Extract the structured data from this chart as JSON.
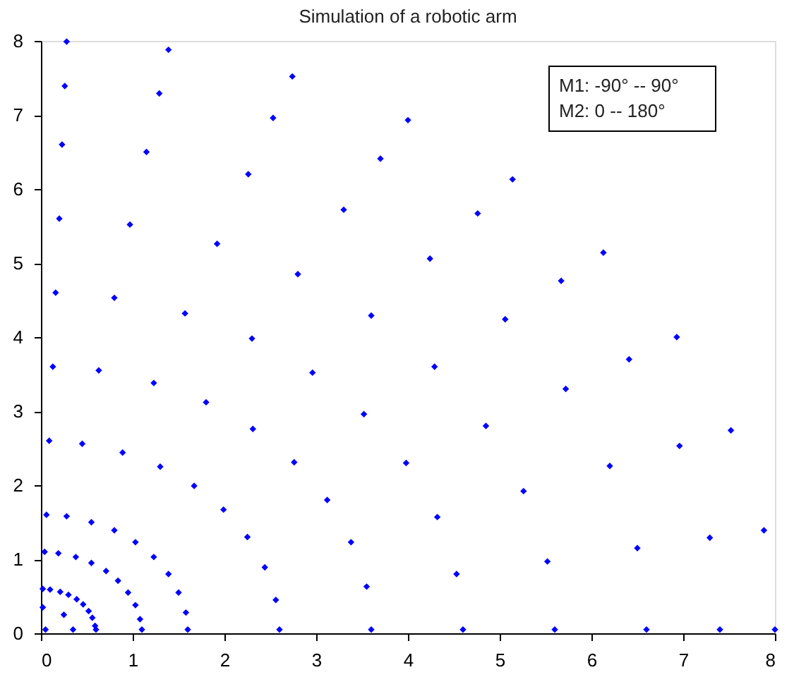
{
  "chart_data": {
    "type": "scatter",
    "title": "Simulation of a robotic arm",
    "annotations": [
      "M1: -90° -- 90°",
      "M2: 0 -- 180°"
    ],
    "xlim": [
      0,
      8
    ],
    "ylim": [
      0,
      8
    ],
    "xticks": [
      0,
      1,
      2,
      3,
      4,
      5,
      6,
      7,
      8
    ],
    "yticks": [
      0,
      1,
      2,
      3,
      4,
      5,
      6,
      7,
      8
    ],
    "grid": false,
    "marker": "diamond",
    "series": [
      {
        "color": "#0000ff",
        "x": [
          8,
          7.88,
          7.52,
          6.93,
          6.13,
          5.14,
          4,
          2.74,
          1.39,
          0.28,
          7.4,
          7.29,
          6.96,
          6.41,
          5.67,
          4.76,
          3.7,
          2.53,
          1.29,
          0.26,
          6.6,
          6.5,
          6.2,
          5.72,
          5.06,
          4.24,
          3.3,
          2.26,
          1.15,
          0.23,
          5.6,
          5.52,
          5.26,
          4.85,
          4.29,
          3.6,
          2.8,
          1.92,
          0.97,
          0.2,
          4.6,
          4.53,
          4.32,
          3.98,
          3.52,
          2.96,
          2.3,
          1.57,
          0.8,
          0.16,
          3.6,
          3.55,
          3.38,
          3.12,
          2.76,
          2.31,
          1.8,
          1.23,
          0.63,
          0.13,
          2.6,
          2.56,
          2.44,
          2.25,
          1.99,
          1.67,
          1.3,
          0.89,
          0.45,
          0.09,
          1.6,
          1.58,
          1.5,
          1.39,
          1.23,
          1.03,
          0.8,
          0.55,
          0.28,
          0.06,
          1.1,
          1.08,
          1.03,
          0.95,
          0.84,
          0.71,
          0.55,
          0.38,
          0.19,
          0.04,
          0.6,
          0.59,
          0.56,
          0.52,
          0.46,
          0.39,
          0.3,
          0.21,
          0.1,
          0.02,
          0.35,
          0.25,
          0.02,
          0.05
        ],
        "values": [
          0.05,
          1.39,
          2.74,
          4,
          5.14,
          6.13,
          6.93,
          7.52,
          7.88,
          7.99,
          0.05,
          1.29,
          2.53,
          3.7,
          4.76,
          5.67,
          6.41,
          6.96,
          7.29,
          7.39,
          0.05,
          1.15,
          2.26,
          3.3,
          4.24,
          5.06,
          5.72,
          6.2,
          6.5,
          6.6,
          0.05,
          0.97,
          1.92,
          2.8,
          3.6,
          4.29,
          4.85,
          5.26,
          5.52,
          5.6,
          0.05,
          0.8,
          1.57,
          2.3,
          2.96,
          3.52,
          3.98,
          4.32,
          4.53,
          4.6,
          0.05,
          0.63,
          1.23,
          1.8,
          2.31,
          2.76,
          3.12,
          3.38,
          3.55,
          3.6,
          0.05,
          0.45,
          0.89,
          1.3,
          1.67,
          1.99,
          2.25,
          2.44,
          2.56,
          2.6,
          0.05,
          0.28,
          0.55,
          0.8,
          1.03,
          1.23,
          1.39,
          1.5,
          1.58,
          1.6,
          0.05,
          0.19,
          0.38,
          0.55,
          0.71,
          0.84,
          0.95,
          1.03,
          1.08,
          1.1,
          0.05,
          0.1,
          0.21,
          0.3,
          0.39,
          0.46,
          0.52,
          0.56,
          0.59,
          0.6,
          0.05,
          0.25,
          0.35,
          0.05
        ]
      }
    ]
  }
}
